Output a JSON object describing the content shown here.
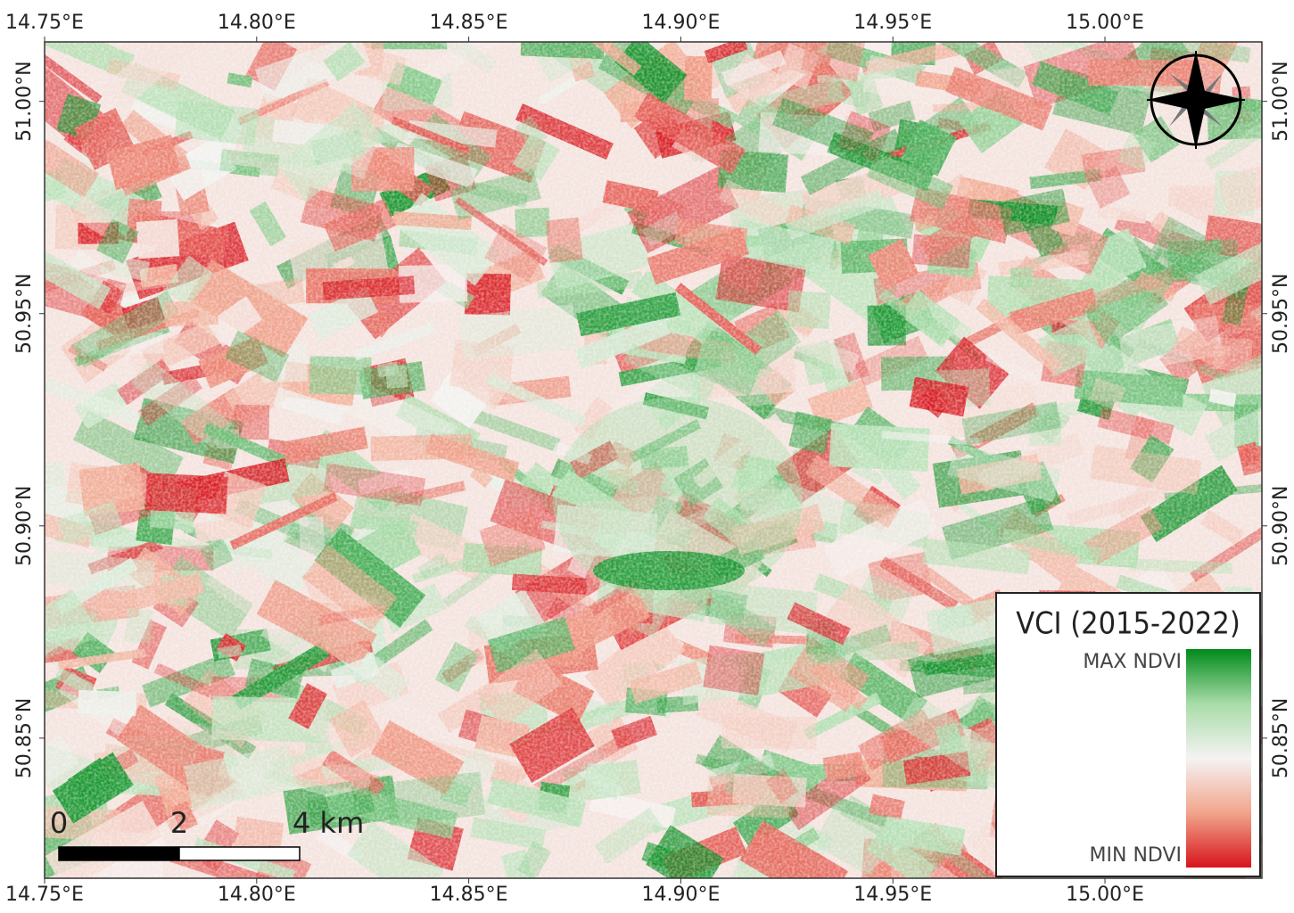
{
  "map": {
    "lon_ticks": [
      {
        "value": 14.75,
        "label": "14.75°E"
      },
      {
        "value": 14.8,
        "label": "14.80°E"
      },
      {
        "value": 14.85,
        "label": "14.85°E"
      },
      {
        "value": 14.9,
        "label": "14.90°E"
      },
      {
        "value": 14.95,
        "label": "14.95°E"
      },
      {
        "value": 15.0,
        "label": "15.00°E"
      }
    ],
    "lat_ticks": [
      {
        "value": 51.0,
        "label": "51.00°N"
      },
      {
        "value": 50.95,
        "label": "50.95°N"
      },
      {
        "value": 50.9,
        "label": "50.90°N"
      },
      {
        "value": 50.85,
        "label": "50.85°N"
      }
    ],
    "xlim": [
      14.75,
      15.037
    ],
    "ylim": [
      50.817,
      51.014
    ],
    "legend": {
      "title": "VCI (2015-2022)",
      "max_label": "MAX NDVI",
      "min_label": "MIN NDVI",
      "colors": [
        "#008a1a",
        "#a8dca8",
        "#f5f3f3",
        "#f1a58c",
        "#d7141c"
      ]
    },
    "scale_bar": {
      "labels": [
        "0",
        "2",
        "4 km"
      ]
    }
  }
}
